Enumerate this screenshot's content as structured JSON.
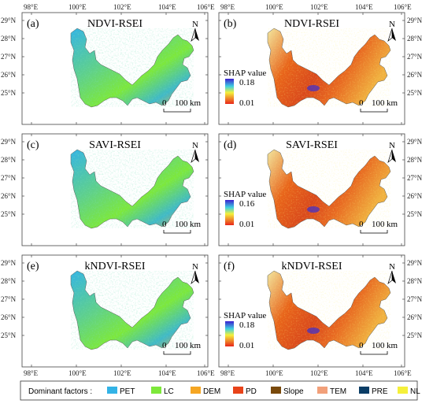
{
  "longitudes": [
    "98°E",
    "100°E",
    "102°E",
    "104°E",
    "106°E"
  ],
  "latitudes": [
    "29°N",
    "28°N",
    "27°N",
    "26°N",
    "25°N"
  ],
  "north_label": "N",
  "scale_zero": "0",
  "scale_value": "100",
  "scale_unit": "km",
  "colorbar_title": "SHAP value",
  "panels": [
    {
      "label": "(a)",
      "title": "NDVI-RSEI",
      "kind": "dominant"
    },
    {
      "label": "(b)",
      "title": "NDVI-RSEI",
      "kind": "shap",
      "shap_max": "0.18",
      "shap_min": "0.01"
    },
    {
      "label": "(c)",
      "title": "SAVI-RSEI",
      "kind": "dominant"
    },
    {
      "label": "(d)",
      "title": "SAVI-RSEI",
      "kind": "shap",
      "shap_max": "0.16",
      "shap_min": "0.01"
    },
    {
      "label": "(e)",
      "title": "kNDVI-RSEI",
      "kind": "dominant"
    },
    {
      "label": "(f)",
      "title": "kNDVI-RSEI",
      "kind": "shap",
      "shap_max": "0.18",
      "shap_min": "0.01"
    }
  ],
  "legend": {
    "title": "Dominant factors :",
    "items": [
      {
        "name": "PET",
        "color": "#33b3e6"
      },
      {
        "name": "LC",
        "color": "#7de83a"
      },
      {
        "name": "DEM",
        "color": "#f5a623"
      },
      {
        "name": "PD",
        "color": "#e8431a"
      },
      {
        "name": "Slope",
        "color": "#7a4a0c"
      },
      {
        "name": "TEM",
        "color": "#f2a07a"
      },
      {
        "name": "PRE",
        "color": "#0b3d66"
      },
      {
        "name": "NL",
        "color": "#f5f03a"
      }
    ]
  }
}
